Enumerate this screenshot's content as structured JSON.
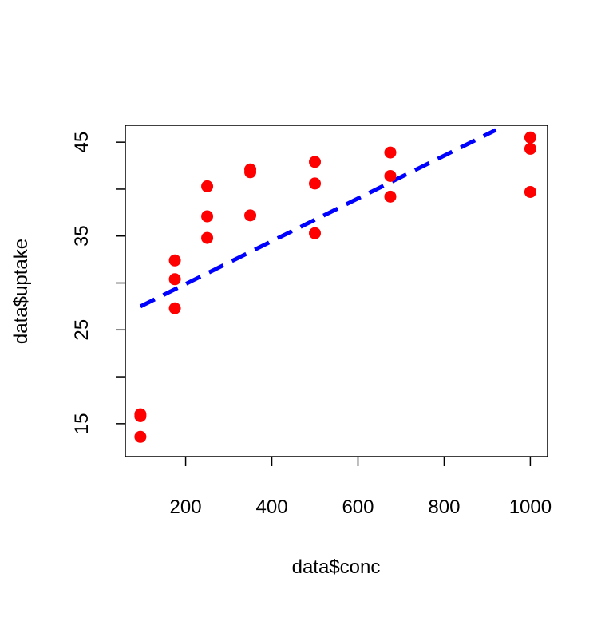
{
  "chart_data": {
    "type": "scatter",
    "title": "",
    "xlabel": "data$conc",
    "ylabel": "data$uptake",
    "xlim": [
      60,
      1040
    ],
    "ylim": [
      11.5,
      46.8
    ],
    "x_ticks": [
      200,
      400,
      600,
      800,
      1000
    ],
    "x_tick_labels": [
      "200",
      "400",
      "600",
      "800",
      "1000"
    ],
    "y_ticks": [
      15,
      20,
      25,
      30,
      35,
      40,
      45
    ],
    "y_tick_labels": [
      "15",
      "",
      "25",
      "",
      "35",
      "",
      "45"
    ],
    "grid": false,
    "legend": "none",
    "series": [
      {
        "kind": "points",
        "color": "#ff0000",
        "points": [
          {
            "x": 95,
            "y": 16.0
          },
          {
            "x": 95,
            "y": 15.8
          },
          {
            "x": 95,
            "y": 13.6
          },
          {
            "x": 175,
            "y": 32.4
          },
          {
            "x": 175,
            "y": 30.4
          },
          {
            "x": 175,
            "y": 27.3
          },
          {
            "x": 250,
            "y": 40.3
          },
          {
            "x": 250,
            "y": 37.1
          },
          {
            "x": 250,
            "y": 34.8
          },
          {
            "x": 350,
            "y": 42.1
          },
          {
            "x": 350,
            "y": 41.8
          },
          {
            "x": 350,
            "y": 37.2
          },
          {
            "x": 500,
            "y": 42.9
          },
          {
            "x": 500,
            "y": 40.6
          },
          {
            "x": 500,
            "y": 35.3
          },
          {
            "x": 675,
            "y": 43.9
          },
          {
            "x": 675,
            "y": 41.4
          },
          {
            "x": 675,
            "y": 39.2
          },
          {
            "x": 1000,
            "y": 45.5
          },
          {
            "x": 1000,
            "y": 44.3
          },
          {
            "x": 1000,
            "y": 39.7
          }
        ]
      },
      {
        "kind": "fit-line",
        "color": "#0000ff",
        "style": "dashed",
        "x": [
          95,
          920
        ],
        "y": [
          27.5,
          46.3
        ]
      }
    ]
  }
}
